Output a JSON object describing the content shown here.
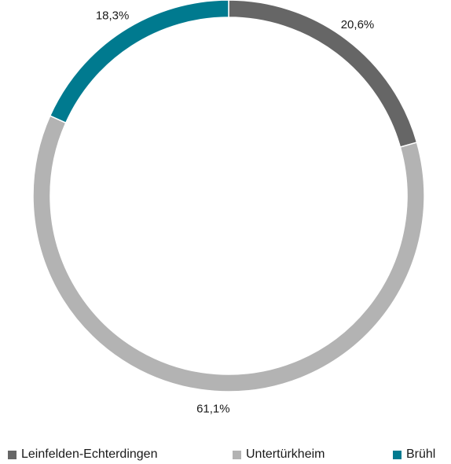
{
  "chart_data": {
    "type": "pie",
    "style": "donut",
    "categories": [
      "Leinfelden-Echterdingen",
      "Untertürkheim",
      "Brühl"
    ],
    "values": [
      20.6,
      61.1,
      18.3
    ],
    "value_labels": [
      "20,6%",
      "61,1%",
      "18,3%"
    ],
    "colors": [
      "#666666",
      "#b3b3b3",
      "#007a8f"
    ],
    "title": "",
    "legend_position": "bottom"
  }
}
